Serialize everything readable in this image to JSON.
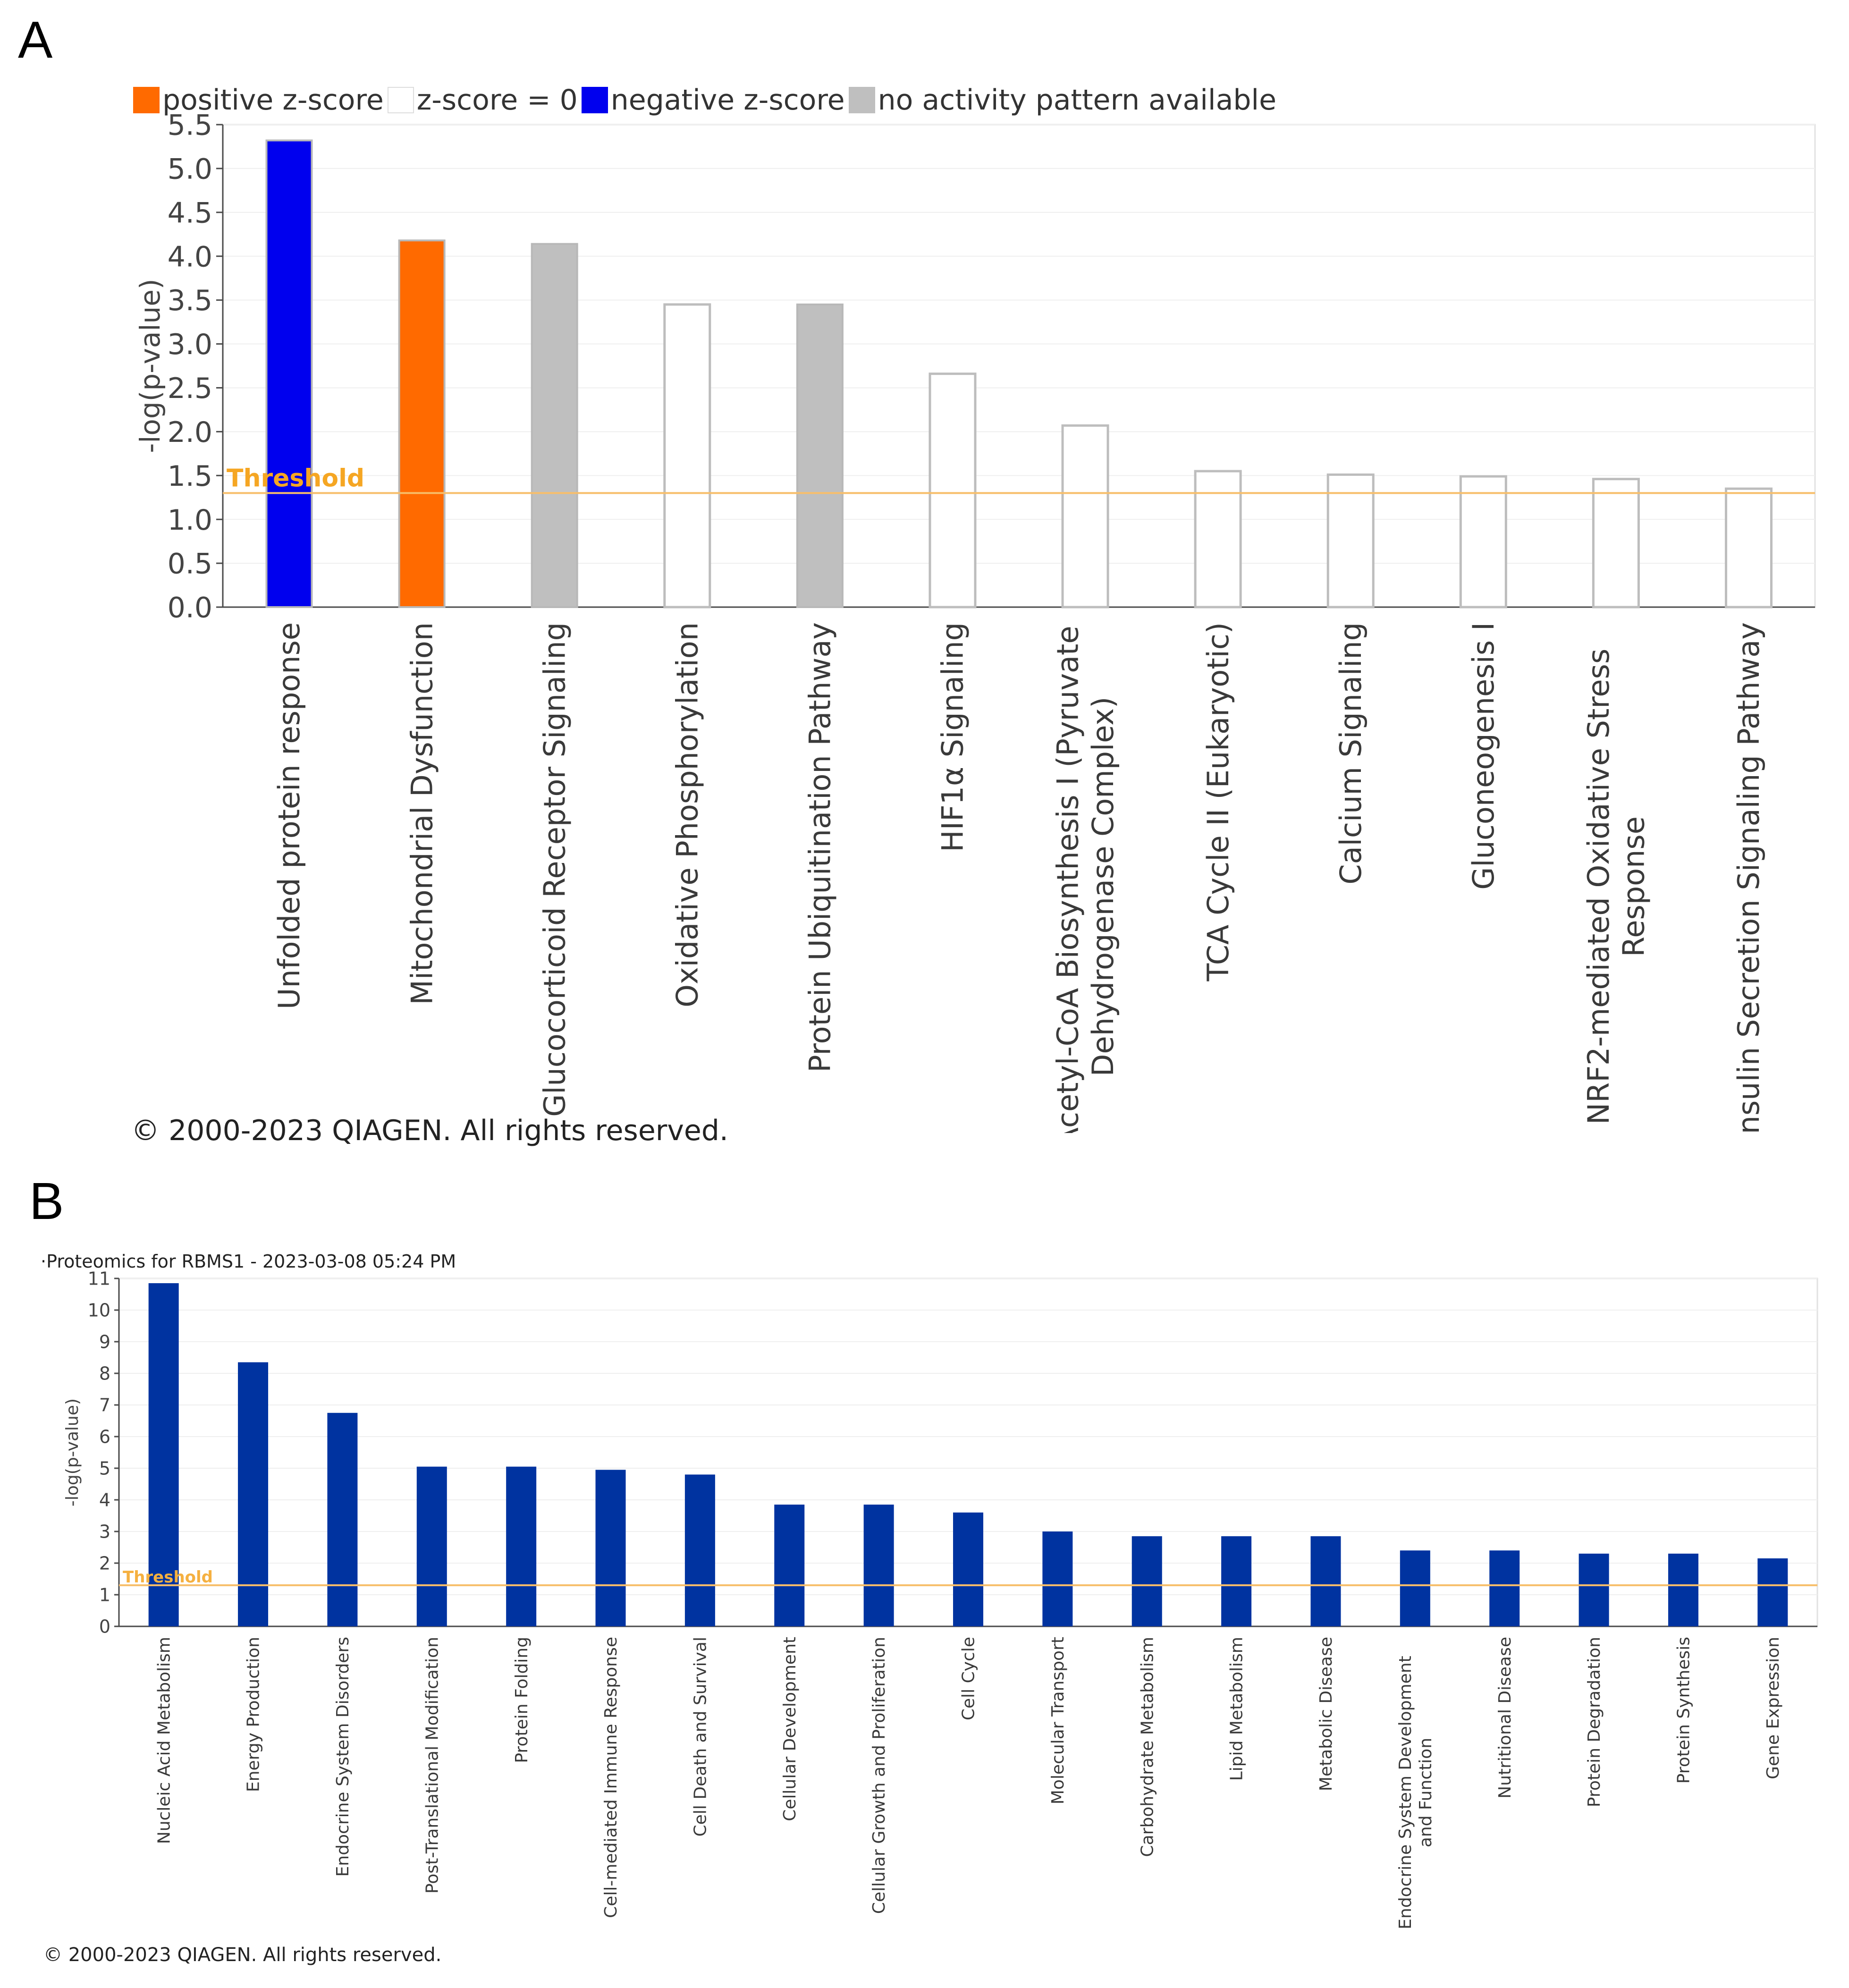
{
  "panel_a": {
    "letter": "A",
    "legend": [
      {
        "label": "positive z-score",
        "color": "#FF6A00",
        "border": "#FF6A00"
      },
      {
        "label": "z-score = 0",
        "color": "#FFFFFF",
        "border": "#DDDDDD"
      },
      {
        "label": "negative z-score",
        "color": "#0000EE",
        "border": "#0000EE"
      },
      {
        "label": "no activity pattern available",
        "color": "#BFBFBF",
        "border": "#BFBFBF"
      }
    ],
    "copyright": "© 2000-2023 QIAGEN. All rights reserved."
  },
  "panel_b": {
    "letter": "B",
    "subtitle": "·Proteomics for RBMS1 - 2023-03-08 05:24 PM",
    "copyright": "© 2000-2023 QIAGEN. All rights reserved."
  },
  "colors": {
    "positive": "#FF6A00",
    "zero_fill": "#FFFFFF",
    "zero_stroke": "#BDBDBD",
    "negative": "#0000EE",
    "no_pattern": "#BFBFBF",
    "bar_b": "#0033A0",
    "threshold": "#F7BE6A",
    "threshold_text_a": "#F5A623",
    "threshold_text_b": "#F5B040",
    "axis": "#4A4A4A",
    "grid": "#EFEFEF"
  },
  "chart_data": [
    {
      "type": "bar",
      "title": "",
      "xlabel": "",
      "ylabel": "-log(p-value)",
      "ylim": [
        0,
        5.5
      ],
      "yticks": [
        "0.0",
        "0.5",
        "1.0",
        "1.5",
        "2.0",
        "2.5",
        "3.0",
        "3.5",
        "4.0",
        "4.5",
        "5.0",
        "5.5"
      ],
      "threshold": 1.3,
      "threshold_label": "Threshold",
      "categories": [
        [
          "Unfolded protein response"
        ],
        [
          "Mitochondrial Dysfunction"
        ],
        [
          "Glucocorticoid Receptor Signaling"
        ],
        [
          "Oxidative Phosphorylation"
        ],
        [
          "Protein Ubiquitination Pathway"
        ],
        [
          "HIF1α Signaling"
        ],
        [
          "Acetyl-CoA Biosynthesis I (Pyruvate",
          "Dehydrogenase Complex)"
        ],
        [
          "TCA Cycle II (Eukaryotic)"
        ],
        [
          "Calcium Signaling"
        ],
        [
          "Gluconeogenesis I"
        ],
        [
          "NRF2-mediated Oxidative Stress",
          "Response"
        ],
        [
          "Insulin Secretion Signaling Pathway"
        ]
      ],
      "values": [
        5.32,
        4.18,
        4.14,
        3.45,
        3.45,
        2.66,
        2.07,
        1.55,
        1.51,
        1.49,
        1.46,
        1.35
      ],
      "zscore_class": [
        "negative",
        "positive",
        "no_pattern",
        "zero",
        "no_pattern",
        "zero",
        "zero",
        "zero",
        "zero",
        "zero",
        "zero",
        "zero"
      ]
    },
    {
      "type": "bar",
      "title": "",
      "xlabel": "",
      "ylabel": "-log(p-value)",
      "ylim": [
        0,
        11
      ],
      "yticks": [
        "0",
        "1",
        "2",
        "3",
        "4",
        "5",
        "6",
        "7",
        "8",
        "9",
        "10",
        "11"
      ],
      "threshold": 1.3,
      "threshold_label": "Threshold",
      "categories": [
        [
          "Nucleic Acid Metabolism"
        ],
        [
          "Energy Production"
        ],
        [
          "Endocrine System Disorders"
        ],
        [
          "Post-Translational Modification"
        ],
        [
          "Protein Folding"
        ],
        [
          "Cell-mediated Immune Response"
        ],
        [
          "Cell Death and Survival"
        ],
        [
          "Cellular Development"
        ],
        [
          "Cellular Growth and Proliferation"
        ],
        [
          "Cell Cycle"
        ],
        [
          "Molecular Transport"
        ],
        [
          "Carbohydrate Metabolism"
        ],
        [
          "Lipid Metabolism"
        ],
        [
          "Metabolic Disease"
        ],
        [
          "Endocrine System Development",
          "and Function"
        ],
        [
          "Nutritional Disease"
        ],
        [
          "Protein Degradation"
        ],
        [
          "Protein Synthesis"
        ],
        [
          "Gene Expression"
        ]
      ],
      "values": [
        10.85,
        8.35,
        6.75,
        5.05,
        5.05,
        4.95,
        4.8,
        3.85,
        3.85,
        3.6,
        3.0,
        2.85,
        2.85,
        2.85,
        2.4,
        2.4,
        2.3,
        2.3,
        2.15
      ]
    }
  ]
}
